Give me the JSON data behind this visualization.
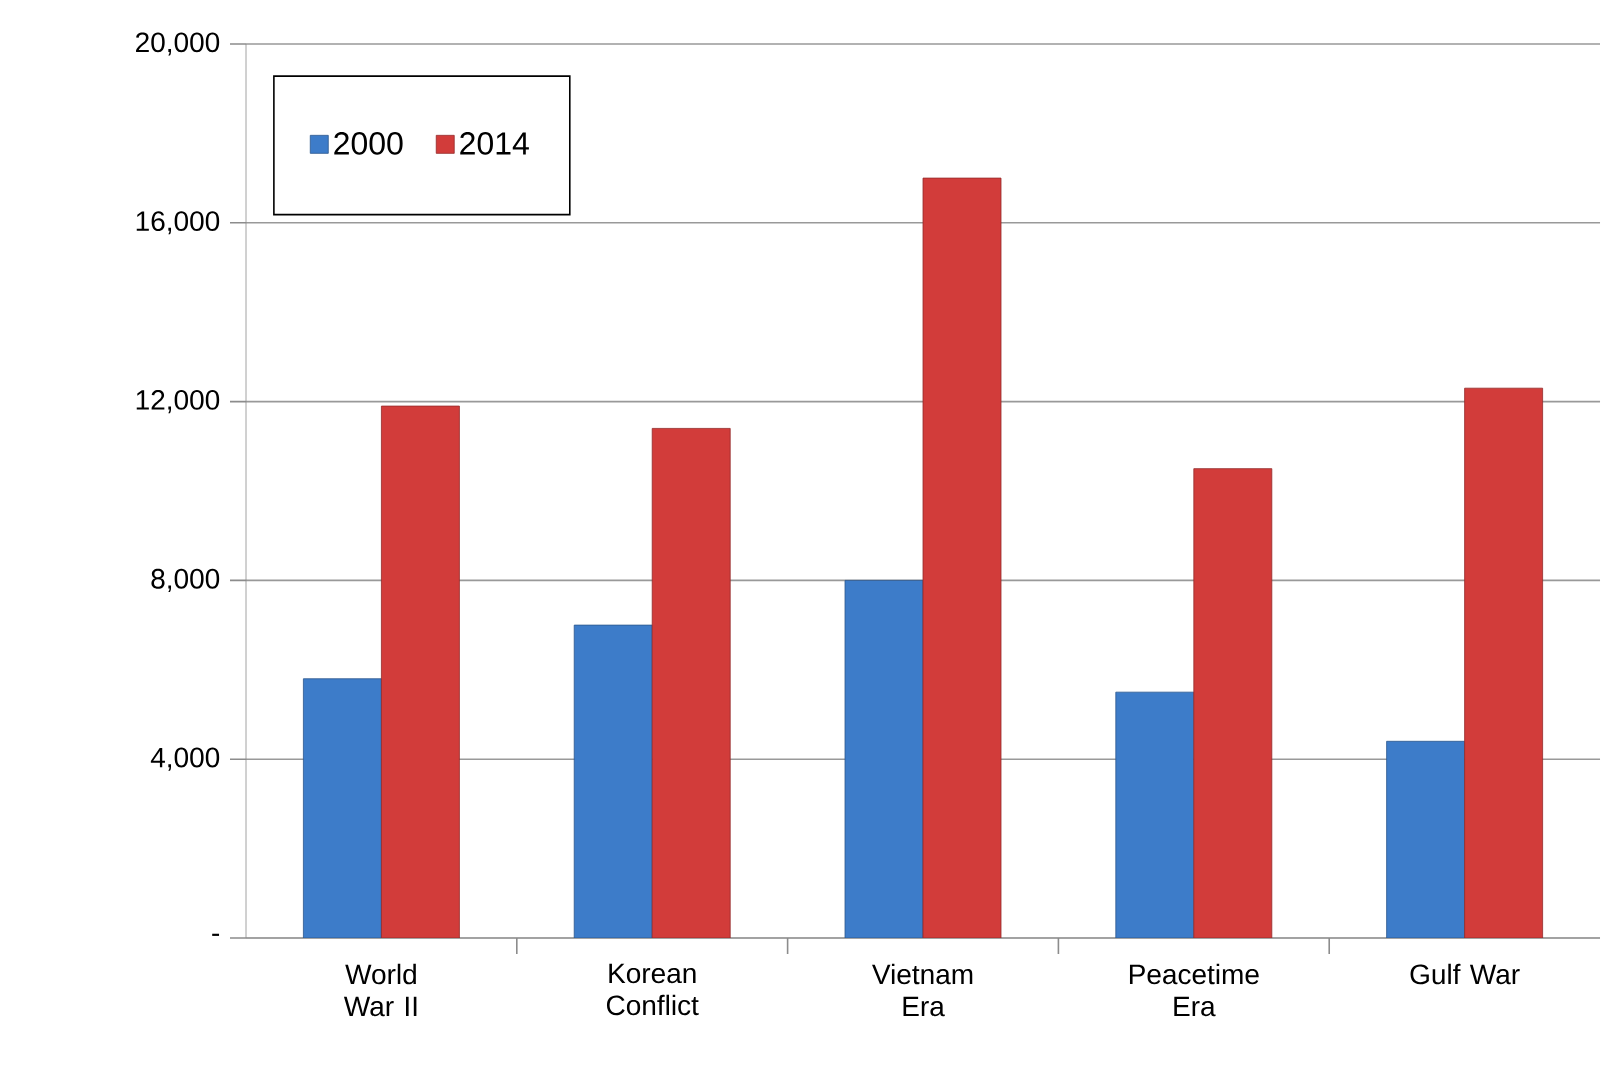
{
  "chart_data": {
    "type": "bar",
    "categories": [
      "World War II",
      "Korean Conflict",
      "Vietnam Era",
      "Peacetime Era",
      "Gulf War"
    ],
    "series": [
      {
        "name": "2000",
        "color": "#3d7cc9",
        "values": [
          5800,
          7000,
          8000,
          5500,
          4400
        ]
      },
      {
        "name": "2014",
        "color": "#d23c3a",
        "values": [
          11900,
          11400,
          17000,
          10500,
          12300
        ]
      }
    ],
    "ylim": [
      0,
      20000
    ],
    "yticks": [
      {
        "value": 0,
        "label": "-"
      },
      {
        "value": 4000,
        "label": "4,000"
      },
      {
        "value": 8000,
        "label": "8,000"
      },
      {
        "value": 12000,
        "label": "12,000"
      },
      {
        "value": 16000,
        "label": "16,000"
      },
      {
        "value": 20000,
        "label": "20,000"
      }
    ],
    "grid": "y",
    "legend": "top left"
  }
}
